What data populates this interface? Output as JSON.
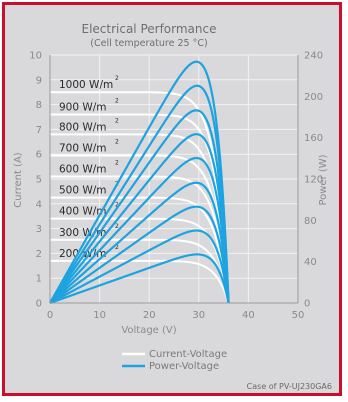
{
  "chart_data": {
    "type": "line",
    "title": "Electrical Performance",
    "subtitle": "(Cell temperature 25 °C)",
    "xlabel": "Voltage (V)",
    "ylabel_left": "Current (A)",
    "ylabel_right": "Power (W)",
    "xlim": [
      0,
      50
    ],
    "ylim_left": [
      0,
      10
    ],
    "ylim_right": [
      0,
      240
    ],
    "xticks": [
      "0",
      "10",
      "20",
      "30",
      "40",
      "50"
    ],
    "yticks_left": [
      "0",
      "1",
      "2",
      "3",
      "4",
      "5",
      "6",
      "7",
      "8",
      "9",
      "10"
    ],
    "yticks_right": [
      "0",
      "40",
      "80",
      "120",
      "160",
      "200",
      "240"
    ],
    "grid": true,
    "colors": {
      "current": "#ffffff",
      "power": "#1ea3e0",
      "background": "#d9d9db",
      "border": "#c8102e"
    },
    "irradiance_unit": "W/m",
    "irradiance_exponent": "2",
    "voc": 36,
    "vmp": 30,
    "series": [
      {
        "irradiance": "1000",
        "isc": 8.5,
        "pmax": 233
      },
      {
        "irradiance": "900",
        "isc": 7.6,
        "pmax": 210
      },
      {
        "irradiance": "800",
        "isc": 6.8,
        "pmax": 186
      },
      {
        "irradiance": "700",
        "isc": 5.95,
        "pmax": 163
      },
      {
        "irradiance": "600",
        "isc": 5.1,
        "pmax": 140
      },
      {
        "irradiance": "500",
        "isc": 4.25,
        "pmax": 116
      },
      {
        "irradiance": "400",
        "isc": 3.4,
        "pmax": 93
      },
      {
        "irradiance": "300",
        "isc": 2.55,
        "pmax": 70
      },
      {
        "irradiance": "200",
        "isc": 1.7,
        "pmax": 47
      }
    ],
    "legend": [
      {
        "key": "current",
        "label": "Current-Voltage"
      },
      {
        "key": "power",
        "label": "Power-Voltage"
      }
    ],
    "legend_position": "bottom-center",
    "caption": "Case of PV-UJ230GA6"
  }
}
